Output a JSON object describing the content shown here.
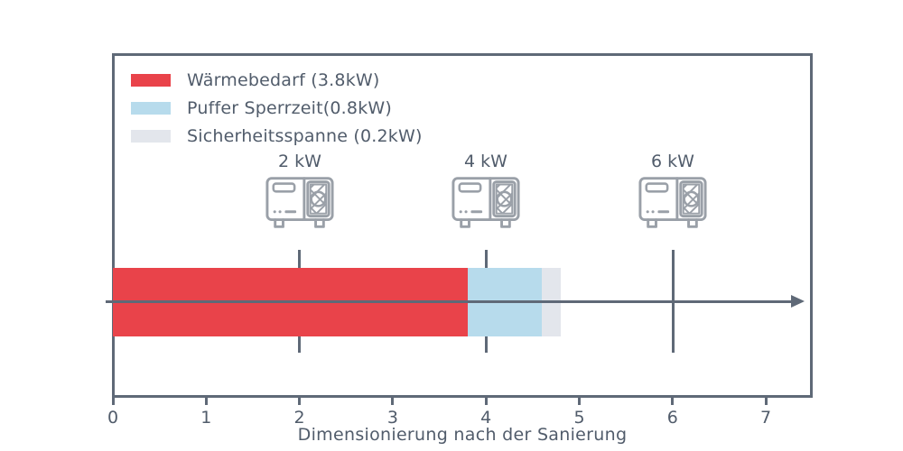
{
  "chart_data": {
    "type": "bar",
    "orientation": "horizontal-stacked",
    "title": "",
    "xlabel": "Dimensionierung nach der Sanierung",
    "ylabel": "",
    "xlim": [
      0,
      7
    ],
    "x_ticks": [
      "0",
      "1",
      "2",
      "3",
      "4",
      "5",
      "6",
      "7"
    ],
    "grid": false,
    "legend_position": "upper left",
    "series": [
      {
        "name": "Wärmebedarf (3.8kW)",
        "value": 3.8,
        "start": 0,
        "end": 3.8,
        "color": "#e9434a"
      },
      {
        "name": "Puffer Sperrzeit(0.8kW)",
        "value": 0.8,
        "start": 3.8,
        "end": 4.6,
        "color": "#b7dbec"
      },
      {
        "name": "Sicherheitsspanne (0.2kW)",
        "value": 0.2,
        "start": 4.6,
        "end": 4.8,
        "color": "#e3e6ec"
      }
    ],
    "annotations": [
      {
        "label": "2 kW",
        "x": 2,
        "icon": "heat-pump-icon"
      },
      {
        "label": "4 kW",
        "x": 4,
        "icon": "heat-pump-icon"
      },
      {
        "label": "6 kW",
        "x": 6,
        "icon": "heat-pump-icon"
      }
    ]
  },
  "legend": {
    "items": [
      {
        "label": "Wärmebedarf (3.8kW)",
        "color": "#e9434a"
      },
      {
        "label": "Puffer Sperrzeit(0.8kW)",
        "color": "#b7dbec"
      },
      {
        "label": "Sicherheitsspanne (0.2kW)",
        "color": "#e3e6ec"
      }
    ]
  },
  "pumps": [
    {
      "label": "2 kW"
    },
    {
      "label": "4 kW"
    },
    {
      "label": "6 kW"
    }
  ],
  "axis": {
    "title": "Dimensionierung nach der Sanierung",
    "ticks": [
      "0",
      "1",
      "2",
      "3",
      "4",
      "5",
      "6",
      "7"
    ]
  },
  "colors": {
    "bar_red": "#e9434a",
    "bar_blue": "#b7dbec",
    "bar_gray": "#e3e6ec",
    "axis_slate": "#5f6977",
    "icon_gray": "#9aa0a8",
    "text": "#515c6b"
  }
}
